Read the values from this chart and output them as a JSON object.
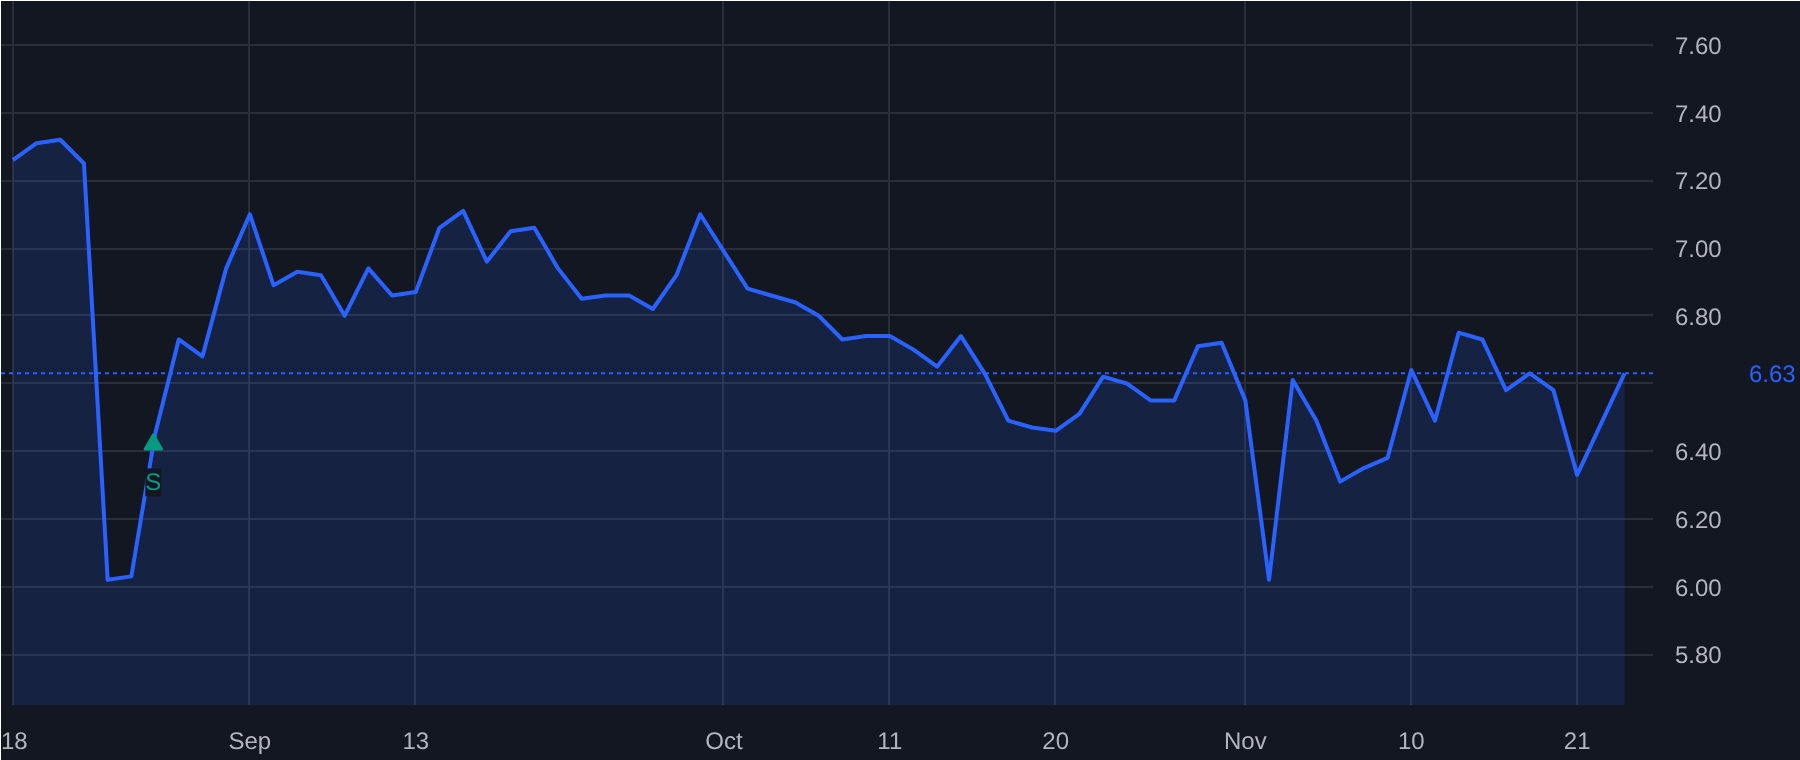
{
  "chart_data": {
    "type": "area",
    "categories": [
      "18",
      null,
      null,
      null,
      null,
      null,
      null,
      null,
      null,
      null,
      "Sep",
      null,
      null,
      null,
      null,
      null,
      null,
      "13",
      null,
      null,
      null,
      null,
      null,
      null,
      null,
      null,
      null,
      null,
      null,
      null,
      "Oct",
      null,
      null,
      null,
      null,
      null,
      null,
      "11",
      null,
      null,
      null,
      null,
      null,
      null,
      "20",
      null,
      null,
      null,
      null,
      null,
      null,
      null,
      "Nov",
      null,
      null,
      null,
      null,
      null,
      null,
      "10",
      null,
      null,
      null,
      null,
      null,
      null,
      "21",
      null,
      null
    ],
    "series": [
      {
        "color": "#2962ff",
        "values": [
          7.26,
          7.31,
          7.32,
          7.25,
          6.02,
          6.03,
          6.45,
          6.73,
          6.68,
          6.94,
          7.1,
          6.89,
          6.93,
          6.92,
          6.8,
          6.94,
          6.86,
          6.87,
          7.06,
          7.11,
          6.96,
          7.05,
          7.06,
          6.94,
          6.85,
          6.86,
          6.86,
          6.82,
          6.92,
          7.1,
          6.99,
          6.88,
          6.86,
          6.84,
          6.8,
          6.73,
          6.74,
          6.74,
          6.7,
          6.65,
          6.74,
          6.63,
          6.49,
          6.47,
          6.46,
          6.51,
          6.62,
          6.6,
          6.55,
          6.55,
          6.71,
          6.72,
          6.55,
          6.02,
          6.61,
          6.49,
          6.31,
          6.35,
          6.38,
          6.64,
          6.49,
          6.75,
          6.73,
          6.58,
          6.63,
          6.58,
          6.33,
          6.48,
          6.63
        ]
      }
    ],
    "ylim": [
      5.65,
      7.73
    ],
    "yticks": [
      {
        "value": 5.8,
        "label": "5.80"
      },
      {
        "value": 6.0,
        "label": "6.00"
      },
      {
        "value": 6.2,
        "label": "6.20"
      },
      {
        "value": 6.4,
        "label": "6.40"
      },
      {
        "value": 6.6,
        "label": null
      },
      {
        "value": 6.8,
        "label": "6.80"
      },
      {
        "value": 7.0,
        "label": "7.00"
      },
      {
        "value": 7.2,
        "label": "7.20"
      },
      {
        "value": 7.4,
        "label": "7.40"
      },
      {
        "value": 7.6,
        "label": "7.60"
      }
    ],
    "ref_lines": [
      {
        "axis": "y",
        "value": 6.63,
        "label": "6.63",
        "color": "#2962ff",
        "line_style": "dotted"
      }
    ],
    "annotations": [
      {
        "text": "S",
        "y": 6.42
      }
    ],
    "grid": true
  }
}
